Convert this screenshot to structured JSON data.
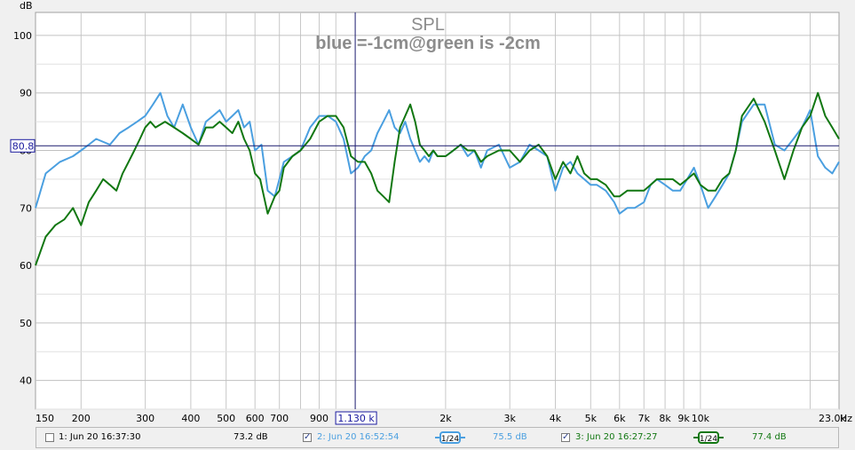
{
  "chart_data": {
    "type": "line",
    "title": "SPL",
    "subtitle": "blue =-1cm@green is -2cm",
    "ylabel": "dB",
    "xlabel_unit": "Hz",
    "ylim": [
      35,
      104
    ],
    "xlim": [
      150,
      24000
    ],
    "x_scale": "log",
    "grid": true,
    "y_ticks": [
      "40",
      "50",
      "60",
      "70",
      "80",
      "90",
      "100"
    ],
    "y_tick_values": [
      40,
      50,
      60,
      70,
      80,
      90,
      100
    ],
    "x_ticks": [
      {
        "v": 150,
        "label": "150"
      },
      {
        "v": 200,
        "label": "200"
      },
      {
        "v": 300,
        "label": "300"
      },
      {
        "v": 400,
        "label": "400"
      },
      {
        "v": 500,
        "label": "500"
      },
      {
        "v": 600,
        "label": "600"
      },
      {
        "v": 700,
        "label": "700"
      },
      {
        "v": 900,
        "label": "900"
      },
      {
        "v": 2000,
        "label": "2k"
      },
      {
        "v": 3000,
        "label": "3k"
      },
      {
        "v": 4000,
        "label": "4k"
      },
      {
        "v": 5000,
        "label": "5k"
      },
      {
        "v": 6000,
        "label": "6k"
      },
      {
        "v": 7000,
        "label": "7k"
      },
      {
        "v": 8000,
        "label": "8k"
      },
      {
        "v": 9000,
        "label": "9k"
      },
      {
        "v": 10000,
        "label": "10k"
      },
      {
        "v": 23000,
        "label": "23.0k"
      }
    ],
    "cursor": {
      "x": 1130,
      "y": 80.8,
      "x_label": "1.130 k",
      "y_label": "80.8"
    },
    "series": [
      {
        "color": "#4a9fe0",
        "x": [
          150,
          160,
          175,
          190,
          200,
          210,
          220,
          240,
          255,
          270,
          285,
          300,
          315,
          330,
          345,
          360,
          380,
          400,
          420,
          440,
          460,
          480,
          500,
          520,
          540,
          560,
          580,
          600,
          625,
          650,
          680,
          700,
          720,
          760,
          800,
          850,
          900,
          950,
          1000,
          1050,
          1100,
          1150,
          1200,
          1250,
          1300,
          1350,
          1400,
          1450,
          1500,
          1550,
          1600,
          1650,
          1700,
          1750,
          1800,
          1850,
          1900,
          2000,
          2100,
          2200,
          2300,
          2400,
          2500,
          2600,
          2800,
          3000,
          3200,
          3400,
          3600,
          3800,
          4000,
          4200,
          4400,
          4600,
          4800,
          5000,
          5200,
          5500,
          5800,
          6000,
          6300,
          6600,
          7000,
          7300,
          7600,
          8000,
          8400,
          8800,
          9200,
          9600,
          10000,
          10500,
          11000,
          11500,
          12000,
          12500,
          13000,
          14000,
          15000,
          16000,
          17000,
          18000,
          19000,
          20000,
          21000,
          22000,
          23000,
          24000
        ],
        "values": [
          70,
          76,
          78,
          79,
          80,
          81,
          82,
          81,
          83,
          84,
          85,
          86,
          88,
          90,
          86,
          84,
          88,
          84,
          81,
          85,
          86,
          87,
          85,
          86,
          87,
          84,
          85,
          80,
          81,
          73,
          72,
          75,
          78,
          79,
          80,
          84,
          86,
          86,
          85,
          82,
          76,
          77,
          79,
          80,
          83,
          85,
          87,
          84,
          83,
          85,
          82,
          80,
          78,
          79,
          78,
          80,
          79,
          79,
          80,
          81,
          79,
          80,
          77,
          80,
          81,
          77,
          78,
          81,
          80,
          79,
          73,
          77,
          78,
          76,
          75,
          74,
          74,
          73,
          71,
          69,
          70,
          70,
          71,
          74,
          75,
          74,
          73,
          73,
          75,
          77,
          74,
          70,
          72,
          74,
          76,
          80,
          85,
          88,
          88,
          81,
          80,
          82,
          84,
          87,
          79,
          77,
          76,
          78
        ]
      },
      {
        "color": "#117711",
        "x": [
          150,
          160,
          170,
          180,
          190,
          200,
          210,
          220,
          230,
          240,
          250,
          260,
          270,
          280,
          290,
          300,
          310,
          320,
          340,
          360,
          380,
          400,
          420,
          440,
          460,
          480,
          500,
          520,
          540,
          560,
          580,
          600,
          620,
          650,
          680,
          700,
          720,
          760,
          800,
          850,
          900,
          950,
          1000,
          1050,
          1100,
          1150,
          1200,
          1250,
          1300,
          1350,
          1400,
          1450,
          1500,
          1550,
          1600,
          1650,
          1700,
          1750,
          1800,
          1850,
          1900,
          2000,
          2100,
          2200,
          2300,
          2400,
          2500,
          2600,
          2800,
          3000,
          3200,
          3400,
          3600,
          3800,
          4000,
          4200,
          4400,
          4600,
          4800,
          5000,
          5200,
          5500,
          5800,
          6000,
          6300,
          6600,
          7000,
          7300,
          7600,
          8000,
          8400,
          8800,
          9200,
          9600,
          10000,
          10500,
          11000,
          11500,
          12000,
          12500,
          13000,
          14000,
          15000,
          16000,
          17000,
          18000,
          19000,
          20000,
          21000,
          22000,
          23000,
          24000
        ],
        "values": [
          60,
          65,
          67,
          68,
          70,
          67,
          71,
          73,
          75,
          74,
          73,
          76,
          78,
          80,
          82,
          84,
          85,
          84,
          85,
          84,
          83,
          82,
          81,
          84,
          84,
          85,
          84,
          83,
          85,
          82,
          80,
          76,
          75,
          69,
          72,
          73,
          77,
          79,
          80,
          82,
          85,
          86,
          86,
          84,
          79,
          78,
          78,
          76,
          73,
          72,
          71,
          78,
          84,
          86,
          88,
          85,
          81,
          80,
          79,
          80,
          79,
          79,
          80,
          81,
          80,
          80,
          78,
          79,
          80,
          80,
          78,
          80,
          81,
          79,
          75,
          78,
          76,
          79,
          76,
          75,
          75,
          74,
          72,
          72,
          73,
          73,
          73,
          74,
          75,
          75,
          75,
          74,
          75,
          76,
          74,
          73,
          73,
          75,
          76,
          80,
          86,
          89,
          85,
          80,
          75,
          80,
          84,
          86,
          90,
          86,
          84,
          82
        ]
      }
    ]
  },
  "legend": {
    "items": [
      {
        "label": "1: Jun 20 16:37:30",
        "value": "73.2 dB",
        "checked": false,
        "color": "#000000",
        "smoothing": ""
      },
      {
        "label": "2: Jun 20 16:52:54",
        "value": "75.5 dB",
        "checked": true,
        "color": "#4a9fe0",
        "smoothing": "1/24"
      },
      {
        "label": "3: Jun 20 16:27:27",
        "value": "77.4 dB",
        "checked": true,
        "color": "#117711",
        "smoothing": "1/24"
      }
    ]
  }
}
